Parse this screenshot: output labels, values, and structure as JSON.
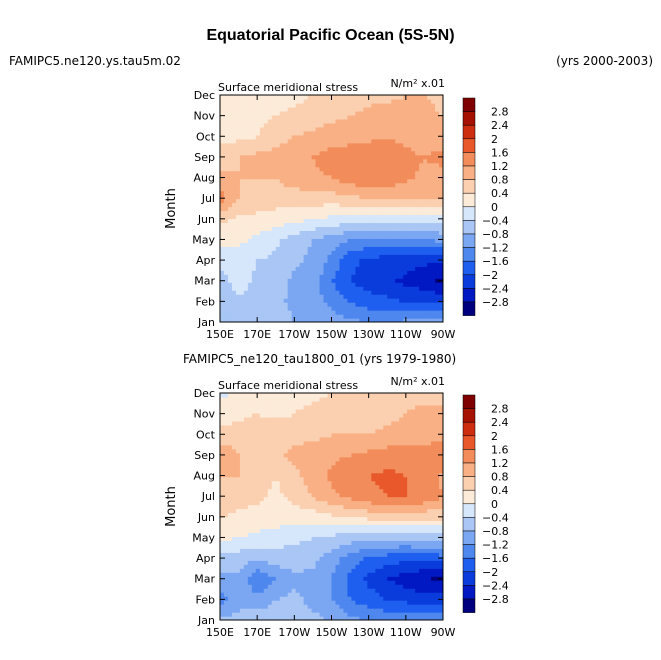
{
  "header": {
    "title": "Equatorial Pacific Ocean (5S-5N)",
    "left_subtitle": "FAMIPC5.ne120.ys.tau5m.02",
    "right_subtitle": "(yrs 2000-2003)",
    "panel2_title": "FAMIPC5_ne120_tau1800_01 (yrs 1979-1980)"
  },
  "chart_data": [
    {
      "type": "heatmap",
      "title": "Surface meridional stress",
      "units": "N/m² x.01",
      "ylabel": "Month",
      "xlabel": "",
      "x_ticks": [
        "150E",
        "170E",
        "170W",
        "150W",
        "130W",
        "110W",
        "90W"
      ],
      "y_ticks": [
        "Jan",
        "Feb",
        "Mar",
        "Apr",
        "May",
        "Jun",
        "Jul",
        "Aug",
        "Sep",
        "Oct",
        "Nov",
        "Dec"
      ],
      "x_values": [
        150,
        160,
        170,
        180,
        190,
        200,
        210,
        220,
        230,
        240,
        250,
        260,
        270
      ],
      "z": [
        [
          -0.6,
          -0.5,
          -0.5,
          -0.6,
          -0.8,
          -0.9,
          -1.0,
          -1.1,
          -1.2,
          -1.2,
          -1.1,
          -1.0,
          -0.9
        ],
        [
          -0.5,
          -0.5,
          -0.6,
          -0.7,
          -0.9,
          -1.0,
          -1.3,
          -1.6,
          -1.8,
          -1.9,
          -2.0,
          -2.0,
          -2.1
        ],
        [
          -0.6,
          -0.2,
          -0.5,
          -0.6,
          -0.9,
          -1.0,
          -1.6,
          -2.0,
          -2.2,
          -2.3,
          -2.5,
          -2.7,
          -2.9
        ],
        [
          -0.3,
          -0.2,
          -0.4,
          -0.5,
          -0.7,
          -0.9,
          -1.3,
          -1.9,
          -2.1,
          -2.2,
          -2.2,
          -2.3,
          -2.4
        ],
        [
          0.2,
          0.1,
          -0.1,
          -0.3,
          -0.6,
          -0.8,
          -1.0,
          -1.2,
          -1.3,
          -1.3,
          -1.2,
          -1.2,
          -1.1
        ],
        [
          0.5,
          0.3,
          0.3,
          0.2,
          0.1,
          0.0,
          -0.1,
          -0.2,
          -0.3,
          -0.3,
          -0.3,
          -0.2,
          -0.2
        ],
        [
          1.4,
          0.8,
          0.6,
          0.6,
          0.6,
          0.6,
          0.6,
          0.7,
          0.8,
          0.8,
          0.8,
          0.8,
          0.8
        ],
        [
          0.9,
          0.8,
          0.8,
          0.8,
          1.0,
          1.1,
          1.2,
          1.4,
          1.6,
          1.5,
          1.3,
          1.1,
          0.9
        ],
        [
          0.6,
          0.8,
          0.9,
          1.0,
          1.1,
          1.2,
          1.4,
          1.5,
          1.5,
          1.4,
          1.3,
          1.2,
          1.4
        ],
        [
          0.3,
          0.3,
          0.4,
          0.6,
          0.8,
          0.9,
          1.0,
          1.0,
          1.1,
          1.2,
          1.1,
          1.0,
          0.9
        ],
        [
          0.1,
          0.2,
          0.3,
          0.4,
          0.5,
          0.6,
          0.7,
          0.8,
          0.9,
          1.0,
          1.0,
          0.9,
          0.8
        ],
        [
          0.1,
          0.2,
          0.2,
          0.2,
          0.3,
          0.4,
          0.5,
          0.6,
          0.7,
          0.7,
          0.8,
          0.8,
          0.7
        ]
      ],
      "contour_levels": [
        -2.8,
        -2.4,
        -2,
        -1.6,
        -1.2,
        -0.8,
        -0.4,
        0,
        0.4,
        0.8,
        1.2,
        1.6,
        2,
        2.4,
        2.8
      ],
      "colors": [
        "#00007f",
        "#0019c2",
        "#0a3cdc",
        "#1f5ff0",
        "#4e87ee",
        "#7aa6f2",
        "#a9c6f5",
        "#d6e6fb",
        "#fdebd9",
        "#fbd0b0",
        "#f8b084",
        "#f28c5a",
        "#e8582a",
        "#cc2e0f",
        "#a61200",
        "#7f0000"
      ],
      "colorbar_labels": [
        "2.8",
        "2.4",
        "2",
        "1.6",
        "1.2",
        "0.8",
        "0.4",
        "0",
        "-0.4",
        "-0.8",
        "-1.2",
        "-1.6",
        "-2",
        "-2.4",
        "-2.8"
      ]
    },
    {
      "type": "heatmap",
      "title": "Surface meridional stress",
      "units": "N/m² x.01",
      "ylabel": "Month",
      "xlabel": "",
      "x_ticks": [
        "150E",
        "170E",
        "170W",
        "150W",
        "130W",
        "110W",
        "90W"
      ],
      "y_ticks": [
        "Jan",
        "Feb",
        "Mar",
        "Apr",
        "May",
        "Jun",
        "Jul",
        "Aug",
        "Sep",
        "Oct",
        "Nov",
        "Dec"
      ],
      "x_values": [
        150,
        160,
        170,
        180,
        190,
        200,
        210,
        220,
        230,
        240,
        250,
        260,
        270
      ],
      "z": [
        [
          -0.7,
          -0.6,
          -0.5,
          -0.5,
          -0.6,
          -0.7,
          -0.8,
          -1.1,
          -1.2,
          -1.3,
          -1.3,
          -1.2,
          -1.2
        ],
        [
          -1.4,
          -1.0,
          -1.1,
          -0.8,
          -0.7,
          -0.9,
          -1.2,
          -1.6,
          -1.8,
          -2.0,
          -2.1,
          -2.2,
          -2.2
        ],
        [
          -1.0,
          -0.9,
          -1.5,
          -1.2,
          -0.9,
          -0.9,
          -1.2,
          -1.7,
          -2.1,
          -2.4,
          -2.6,
          -2.8,
          -2.9
        ],
        [
          -0.5,
          -0.6,
          -0.8,
          -0.6,
          -0.6,
          -0.7,
          -1.0,
          -1.4,
          -1.7,
          -1.8,
          -1.9,
          -1.9,
          -1.8
        ],
        [
          0.1,
          0.0,
          -0.1,
          -0.2,
          -0.3,
          -0.4,
          -0.5,
          -0.6,
          -0.7,
          -0.7,
          -0.7,
          -0.6,
          -0.6
        ],
        [
          0.4,
          0.3,
          0.2,
          0.2,
          0.2,
          0.2,
          0.3,
          0.4,
          0.5,
          0.5,
          0.5,
          0.5,
          0.5
        ],
        [
          0.7,
          0.6,
          0.5,
          0.3,
          0.5,
          0.8,
          1.1,
          1.3,
          1.5,
          1.6,
          1.6,
          1.5,
          1.2
        ],
        [
          0.8,
          0.8,
          0.6,
          0.4,
          0.7,
          1.0,
          1.3,
          1.5,
          1.6,
          1.7,
          1.6,
          1.4,
          1.1
        ],
        [
          1.2,
          0.8,
          0.8,
          0.7,
          0.9,
          1.0,
          1.1,
          1.2,
          1.3,
          1.4,
          1.4,
          1.4,
          1.5
        ],
        [
          0.5,
          0.6,
          0.7,
          0.7,
          0.7,
          0.7,
          0.8,
          0.8,
          0.8,
          0.9,
          0.9,
          1.0,
          1.1
        ],
        [
          0.2,
          0.3,
          0.4,
          0.3,
          0.4,
          0.5,
          0.6,
          0.6,
          0.6,
          0.7,
          0.8,
          0.9,
          1.0
        ],
        [
          -0.1,
          0.1,
          0.2,
          0.2,
          0.3,
          0.3,
          0.4,
          0.4,
          0.5,
          0.6,
          0.7,
          0.7,
          0.6
        ]
      ],
      "contour_levels": [
        -2.8,
        -2.4,
        -2,
        -1.6,
        -1.2,
        -0.8,
        -0.4,
        0,
        0.4,
        0.8,
        1.2,
        1.6,
        2,
        2.4,
        2.8
      ],
      "colors": [
        "#00007f",
        "#0019c2",
        "#0a3cdc",
        "#1f5ff0",
        "#4e87ee",
        "#7aa6f2",
        "#a9c6f5",
        "#d6e6fb",
        "#fdebd9",
        "#fbd0b0",
        "#f8b084",
        "#f28c5a",
        "#e8582a",
        "#cc2e0f",
        "#a61200",
        "#7f0000"
      ],
      "colorbar_labels": [
        "2.8",
        "2.4",
        "2",
        "1.6",
        "1.2",
        "0.8",
        "0.4",
        "0",
        "-0.4",
        "-0.8",
        "-1.2",
        "-1.6",
        "-2",
        "-2.4",
        "-2.8"
      ]
    }
  ]
}
